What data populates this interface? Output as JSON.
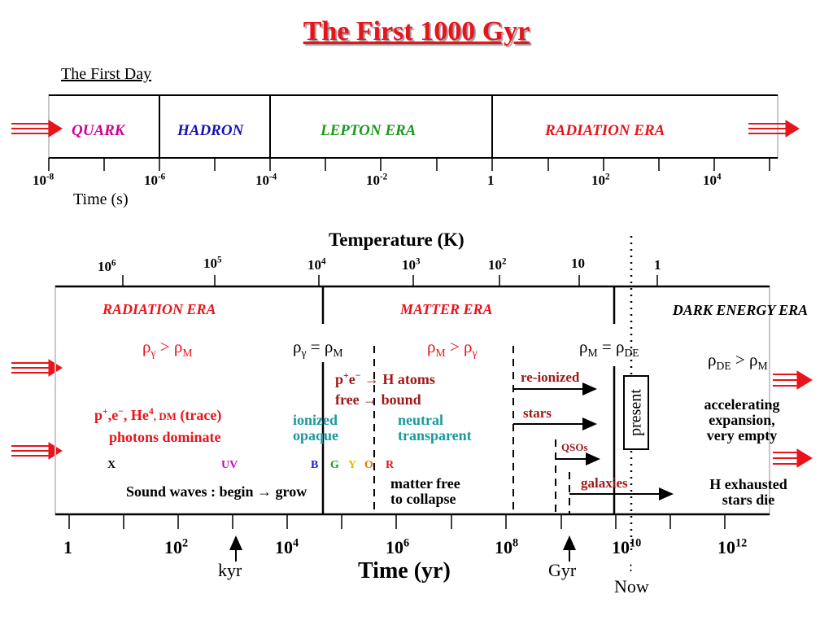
{
  "title": "The First 1000 Gyr",
  "first_day": {
    "subtitle": "The First Day",
    "eras": [
      "QUARK",
      "HADRON",
      "LEPTON  ERA",
      "RADIATION   ERA"
    ],
    "ticks": [
      {
        "base": "10",
        "exp": "-8"
      },
      {
        "base": "10",
        "exp": "-6"
      },
      {
        "base": "10",
        "exp": "-4"
      },
      {
        "base": "10",
        "exp": "-2"
      },
      {
        "base": "1",
        "exp": ""
      },
      {
        "base": "10",
        "exp": "2"
      },
      {
        "base": "10",
        "exp": "4"
      }
    ],
    "axis_label": "Time (s)"
  },
  "temperature": {
    "label": "Temperature (K)",
    "ticks": [
      {
        "base": "10",
        "exp": "6"
      },
      {
        "base": "10",
        "exp": "5"
      },
      {
        "base": "10",
        "exp": "4"
      },
      {
        "base": "10",
        "exp": "3"
      },
      {
        "base": "10",
        "exp": "2"
      },
      {
        "base": "10",
        "exp": ""
      },
      {
        "base": "1",
        "exp": ""
      }
    ]
  },
  "main": {
    "eras": {
      "radiation": "RADIATION   ERA",
      "matter": "MATTER   ERA",
      "dark_energy": "DARK  ENERGY ERA"
    },
    "rad_dominate": {
      "l": "ρ",
      "l_sub": "γ",
      "op": " > ",
      "r": "ρ",
      "r_sub": "M"
    },
    "equality": {
      "l": "ρ",
      "l_sub": "γ",
      "op": " = ",
      "r": "ρ",
      "r_sub": "M"
    },
    "matter_dominate": {
      "l": "ρ",
      "l_sub": "M",
      "op": " > ",
      "r": "ρ",
      "r_sub": "γ"
    },
    "de_equality": {
      "l": "ρ",
      "l_sub": "M",
      "op": " =  ",
      "r": "ρ",
      "r_sub": "DE"
    },
    "de_dominate": {
      "l": "ρ",
      "l_sub": "DE",
      "op": " > ",
      "r": "ρ",
      "r_sub": "M"
    },
    "particles": {
      "p": "p",
      "p_sup": "+",
      "e": ",e",
      "e_sup": "−",
      "he": ", He",
      "he_sup": "4",
      "dm": ", DM",
      "trace": "  (trace)"
    },
    "photons": "photons dominate",
    "recomb": {
      "p": "p",
      "p_sup": "+",
      "e": "e",
      "e_sup": "−",
      "arrow": " → H atoms"
    },
    "free_bound": "free → bound",
    "ionized": "ionized",
    "opaque": "opaque",
    "neutral": "neutral",
    "transparent": "transparent",
    "spectrum": [
      "X",
      "UV",
      "B",
      "G",
      "Y",
      "O",
      "R"
    ],
    "spectrum_colors": [
      "#000000",
      "#cc00cc",
      "#2020cc",
      "#1a9a1a",
      "#d8c000",
      "#e87800",
      "#e8141b"
    ],
    "sound_waves": "Sound waves :  begin → grow",
    "matter_free_1": "matter free",
    "matter_free_2": "to collapse",
    "re_ionized": "re-ionized",
    "stars": "stars",
    "qsos": "QSOs",
    "galaxies": "galaxies",
    "present": "present",
    "accel": [
      "accelerating",
      "expansion,",
      "very empty"
    ],
    "h_exhausted": [
      "H exhausted",
      "stars die"
    ],
    "time_ticks": [
      {
        "base": "1",
        "exp": ""
      },
      {
        "base": "10",
        "exp": "2"
      },
      {
        "base": "10",
        "exp": "4"
      },
      {
        "base": "10",
        "exp": "6"
      },
      {
        "base": "10",
        "exp": "8"
      },
      {
        "base": "10",
        "exp": "10"
      },
      {
        "base": "10",
        "exp": "12"
      }
    ],
    "kyr": "kyr",
    "gyr": "Gyr",
    "time_label": "Time (yr)",
    "now_colon": ":",
    "now": "Now"
  },
  "colors": {
    "red": "#e8141b",
    "dark_red": "#a01818",
    "teal": "#1a9a9a",
    "magenta": "#cc0099",
    "blue": "#1414b4",
    "green": "#1a9a1a"
  }
}
